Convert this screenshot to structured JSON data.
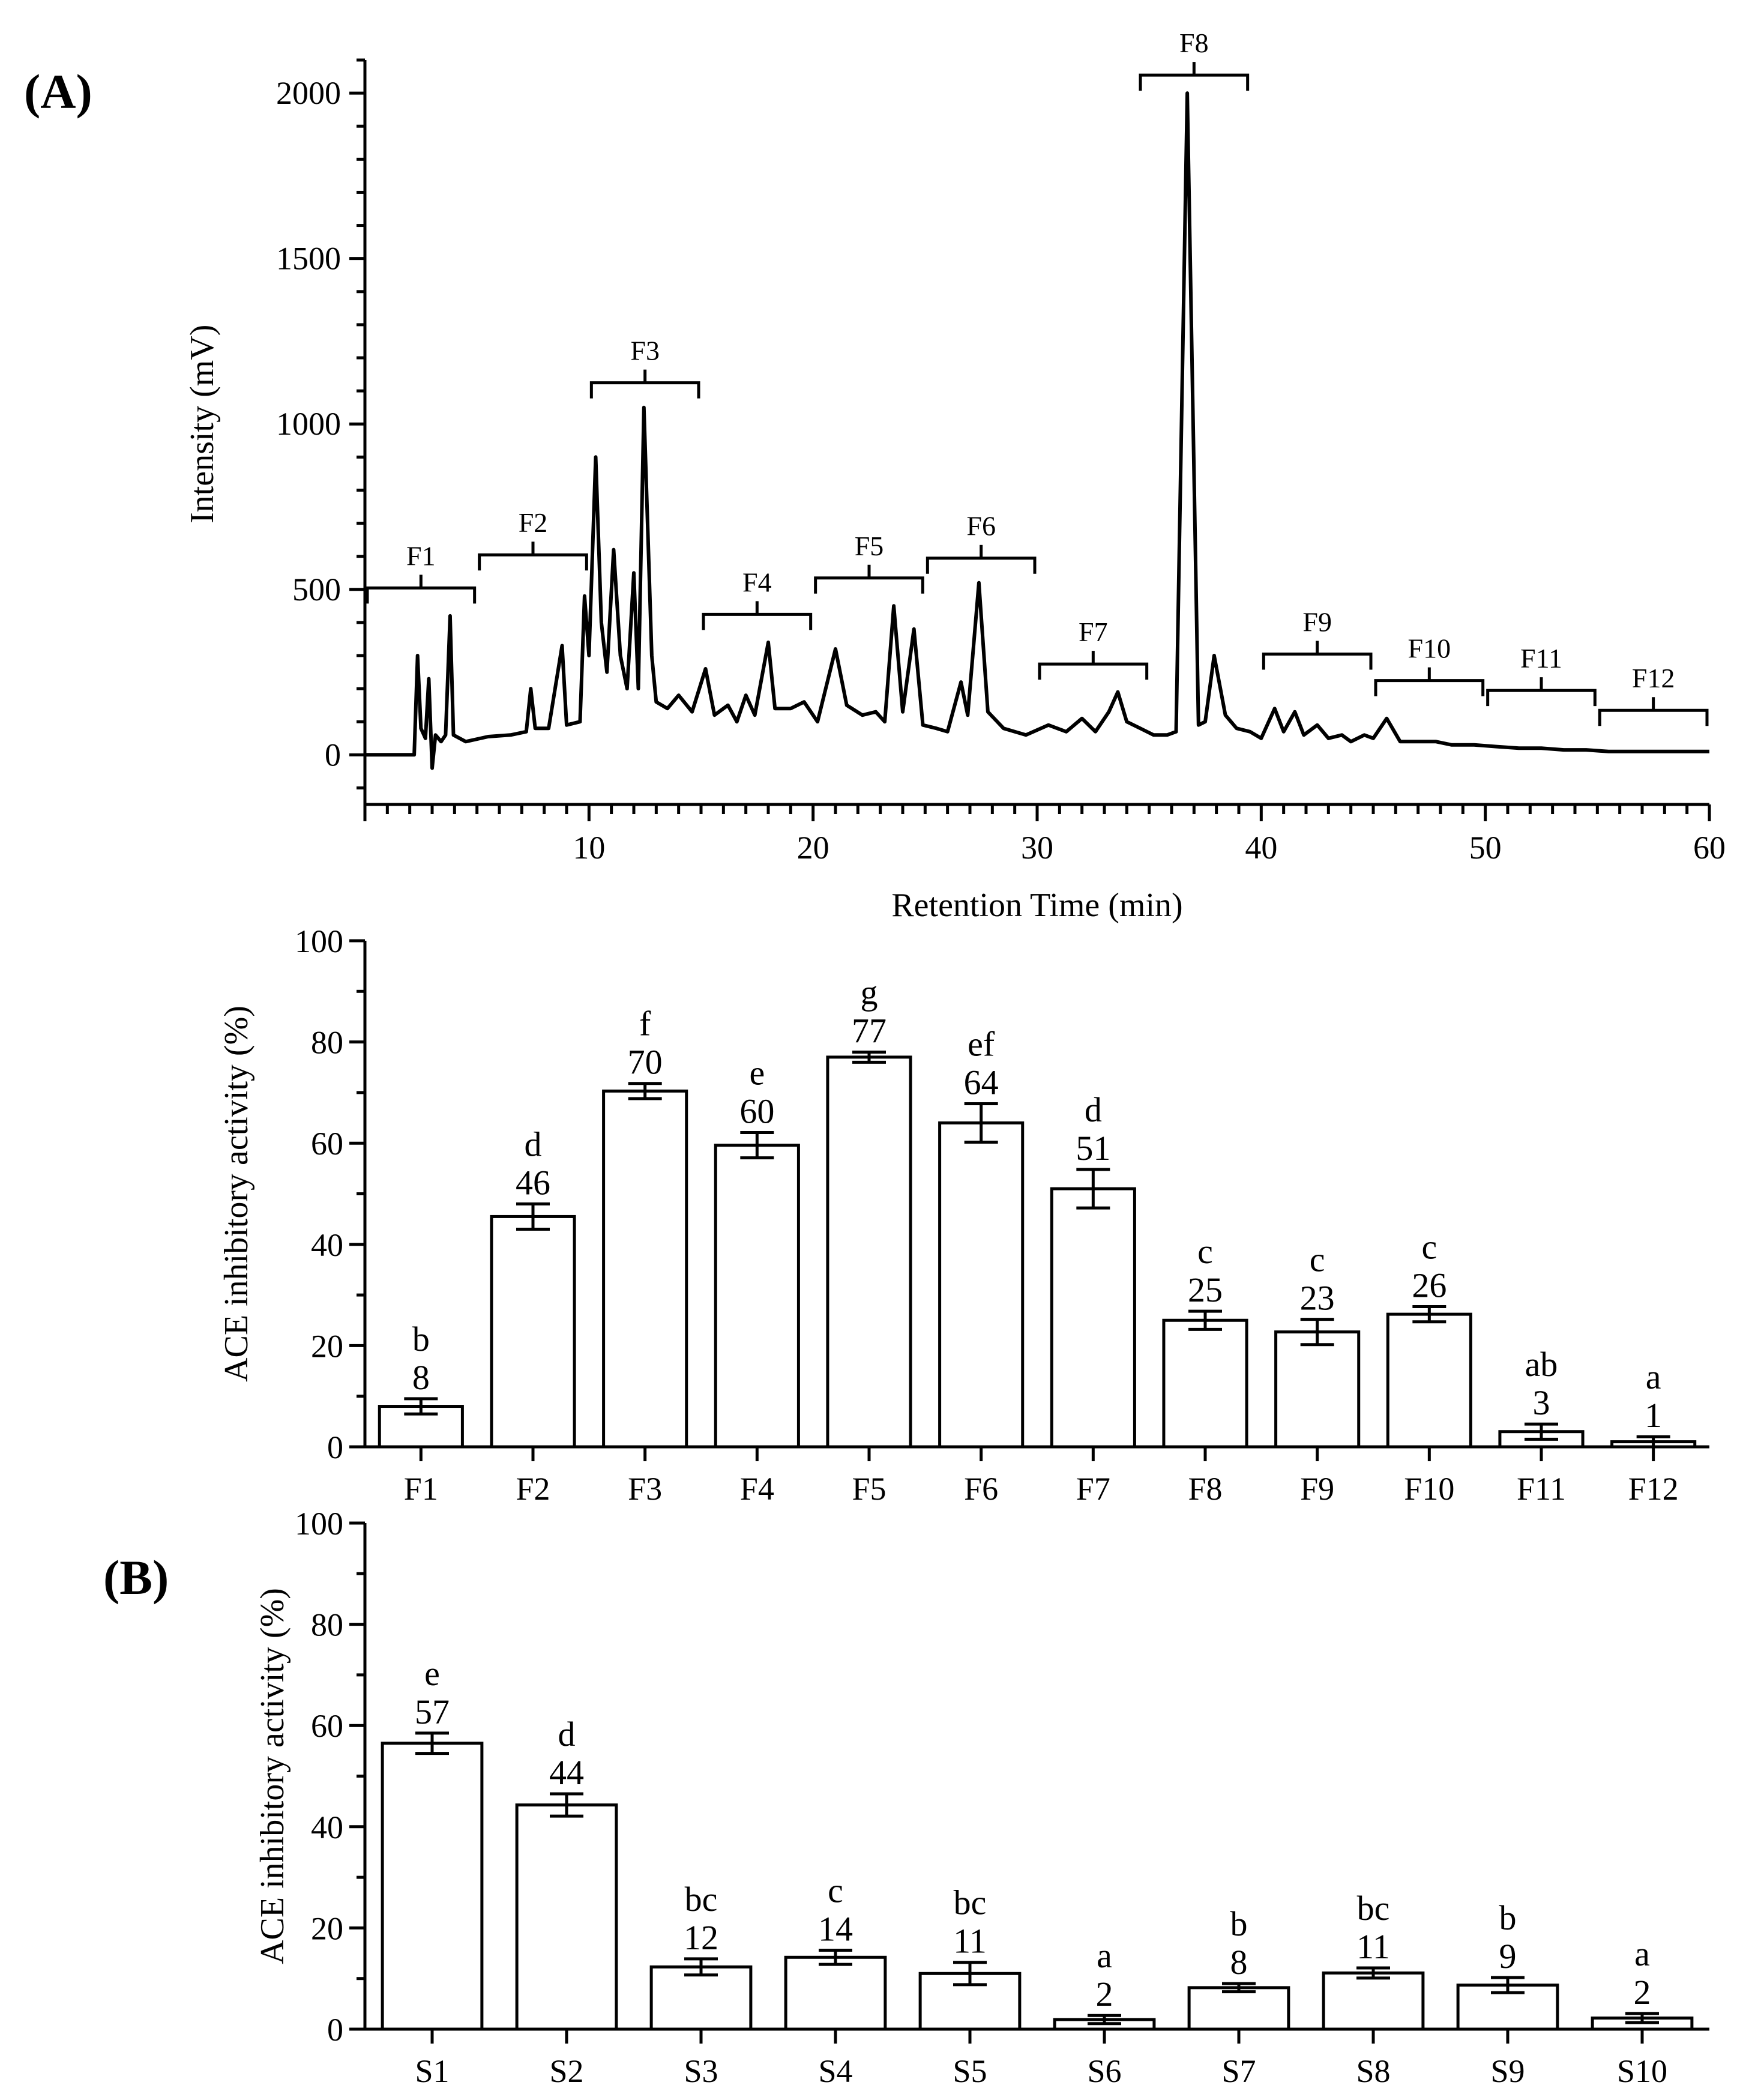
{
  "chart_data": [
    {
      "type": "line",
      "panel_label": "(A)",
      "title": "",
      "xlabel": "Retention Time (min)",
      "ylabel": "Intensity (mV)",
      "xlim": [
        0,
        60
      ],
      "ylim": [
        -150,
        2100
      ],
      "x_ticks": [
        "10",
        "20",
        "30",
        "40",
        "50",
        "60"
      ],
      "y_ticks": [
        "0",
        "500",
        "1000",
        "1500",
        "2000"
      ],
      "series": [
        {
          "name": "chromatogram",
          "points": [
            [
              0,
              0
            ],
            [
              2.2,
              0
            ],
            [
              2.35,
              300
            ],
            [
              2.5,
              80
            ],
            [
              2.7,
              50
            ],
            [
              2.85,
              230
            ],
            [
              3.0,
              -40
            ],
            [
              3.15,
              60
            ],
            [
              3.4,
              40
            ],
            [
              3.6,
              60
            ],
            [
              3.8,
              420
            ],
            [
              3.95,
              60
            ],
            [
              4.5,
              40
            ],
            [
              5.5,
              55
            ],
            [
              6.5,
              60
            ],
            [
              7.2,
              70
            ],
            [
              7.4,
              200
            ],
            [
              7.6,
              80
            ],
            [
              8.2,
              80
            ],
            [
              8.8,
              330
            ],
            [
              9.0,
              90
            ],
            [
              9.6,
              100
            ],
            [
              9.8,
              480
            ],
            [
              10.0,
              300
            ],
            [
              10.3,
              900
            ],
            [
              10.55,
              400
            ],
            [
              10.8,
              250
            ],
            [
              11.1,
              620
            ],
            [
              11.4,
              300
            ],
            [
              11.7,
              200
            ],
            [
              12.0,
              550
            ],
            [
              12.2,
              200
            ],
            [
              12.45,
              1050
            ],
            [
              12.8,
              300
            ],
            [
              13.0,
              160
            ],
            [
              13.5,
              140
            ],
            [
              14.0,
              180
            ],
            [
              14.6,
              130
            ],
            [
              15.2,
              260
            ],
            [
              15.6,
              120
            ],
            [
              16.2,
              150
            ],
            [
              16.6,
              100
            ],
            [
              17.0,
              180
            ],
            [
              17.4,
              120
            ],
            [
              18.0,
              340
            ],
            [
              18.3,
              140
            ],
            [
              19.0,
              140
            ],
            [
              19.6,
              160
            ],
            [
              20.2,
              100
            ],
            [
              21.0,
              320
            ],
            [
              21.5,
              150
            ],
            [
              22.2,
              120
            ],
            [
              22.8,
              130
            ],
            [
              23.2,
              100
            ],
            [
              23.6,
              450
            ],
            [
              24.0,
              130
            ],
            [
              24.5,
              380
            ],
            [
              24.9,
              90
            ],
            [
              25.5,
              80
            ],
            [
              26.0,
              70
            ],
            [
              26.6,
              220
            ],
            [
              26.9,
              120
            ],
            [
              27.4,
              520
            ],
            [
              27.8,
              130
            ],
            [
              28.5,
              80
            ],
            [
              29.5,
              60
            ],
            [
              30.5,
              90
            ],
            [
              31.3,
              70
            ],
            [
              32.0,
              110
            ],
            [
              32.6,
              70
            ],
            [
              33.2,
              130
            ],
            [
              33.6,
              190
            ],
            [
              34.0,
              100
            ],
            [
              34.6,
              80
            ],
            [
              35.2,
              60
            ],
            [
              35.8,
              60
            ],
            [
              36.2,
              70
            ],
            [
              36.7,
              2000
            ],
            [
              37.2,
              90
            ],
            [
              37.5,
              100
            ],
            [
              37.9,
              300
            ],
            [
              38.4,
              120
            ],
            [
              38.9,
              80
            ],
            [
              39.5,
              70
            ],
            [
              40.0,
              50
            ],
            [
              40.6,
              140
            ],
            [
              41.0,
              70
            ],
            [
              41.5,
              130
            ],
            [
              41.9,
              60
            ],
            [
              42.5,
              90
            ],
            [
              43.0,
              50
            ],
            [
              43.6,
              60
            ],
            [
              44.0,
              40
            ],
            [
              44.6,
              60
            ],
            [
              45.0,
              50
            ],
            [
              45.6,
              110
            ],
            [
              46.2,
              40
            ],
            [
              47.0,
              40
            ],
            [
              47.8,
              40
            ],
            [
              48.5,
              30
            ],
            [
              49.5,
              30
            ],
            [
              50.5,
              25
            ],
            [
              51.5,
              20
            ],
            [
              52.5,
              20
            ],
            [
              53.5,
              15
            ],
            [
              54.5,
              15
            ],
            [
              55.5,
              10
            ],
            [
              57.0,
              10
            ],
            [
              58.5,
              10
            ],
            [
              60,
              10
            ]
          ]
        }
      ],
      "fractions": [
        {
          "label": "F1",
          "start": 0,
          "end": 5,
          "level": 450
        },
        {
          "label": "F2",
          "start": 5,
          "end": 10,
          "level": 550
        },
        {
          "label": "F3",
          "start": 10,
          "end": 15,
          "level": 1070
        },
        {
          "label": "F4",
          "start": 15,
          "end": 20,
          "level": 370
        },
        {
          "label": "F5",
          "start": 20,
          "end": 25,
          "level": 480
        },
        {
          "label": "F6",
          "start": 25,
          "end": 30,
          "level": 540
        },
        {
          "label": "F7",
          "start": 30,
          "end": 35,
          "level": 220
        },
        {
          "label": "F8",
          "start": 34.5,
          "end": 39.5,
          "level": 2000
        },
        {
          "label": "F9",
          "start": 40,
          "end": 45,
          "level": 250
        },
        {
          "label": "F10",
          "start": 45,
          "end": 50,
          "level": 170
        },
        {
          "label": "F11",
          "start": 50,
          "end": 55,
          "level": 140
        },
        {
          "label": "F12",
          "start": 55,
          "end": 60,
          "level": 80
        }
      ]
    },
    {
      "type": "bar",
      "panel_label": "",
      "title": "",
      "xlabel": "",
      "ylabel": "ACE inhibitory activity (%)",
      "ylim": [
        0,
        100
      ],
      "y_ticks": [
        "0",
        "20",
        "40",
        "60",
        "80",
        "100"
      ],
      "categories": [
        "F1",
        "F2",
        "F3",
        "F4",
        "F5",
        "F6",
        "F7",
        "F8",
        "F9",
        "F10",
        "F11",
        "F12"
      ],
      "values": [
        8,
        45.5,
        70.3,
        59.6,
        77,
        64,
        51,
        25,
        22.7,
        26.2,
        3,
        1
      ],
      "errors": [
        1.5,
        2.5,
        1.5,
        2.5,
        1.0,
        3.8,
        3.8,
        1.8,
        2.5,
        1.5,
        1.5,
        1.0
      ],
      "value_labels": [
        "8",
        "46",
        "70",
        "60",
        "77",
        "64",
        "51",
        "25",
        "23",
        "26",
        "3",
        "1"
      ],
      "letters": [
        "b",
        "d",
        "f",
        "e",
        "g",
        "ef",
        "d",
        "c",
        "c",
        "c",
        "ab",
        "a"
      ]
    },
    {
      "type": "bar",
      "panel_label": "(B)",
      "title": "",
      "xlabel": "",
      "ylabel": "ACE inhibitory activity (%)",
      "ylim": [
        0,
        100
      ],
      "y_ticks": [
        "0",
        "20",
        "40",
        "60",
        "80",
        "100"
      ],
      "categories": [
        "S1",
        "S2",
        "S3",
        "S4",
        "S5",
        "S6",
        "S7",
        "S8",
        "S9",
        "S10"
      ],
      "values": [
        56.5,
        44.3,
        12.3,
        14.2,
        11,
        1.9,
        8.2,
        11.1,
        8.7,
        2.2
      ],
      "errors": [
        2.0,
        2.2,
        1.6,
        1.4,
        2.2,
        0.8,
        0.8,
        1.0,
        1.5,
        0.9
      ],
      "value_labels": [
        "57",
        "44",
        "12",
        "14",
        "11",
        "2",
        "8",
        "11",
        "9",
        "2"
      ],
      "letters": [
        "e",
        "d",
        "bc",
        "c",
        "bc",
        "a",
        "b",
        "bc",
        "b",
        "a"
      ]
    }
  ]
}
